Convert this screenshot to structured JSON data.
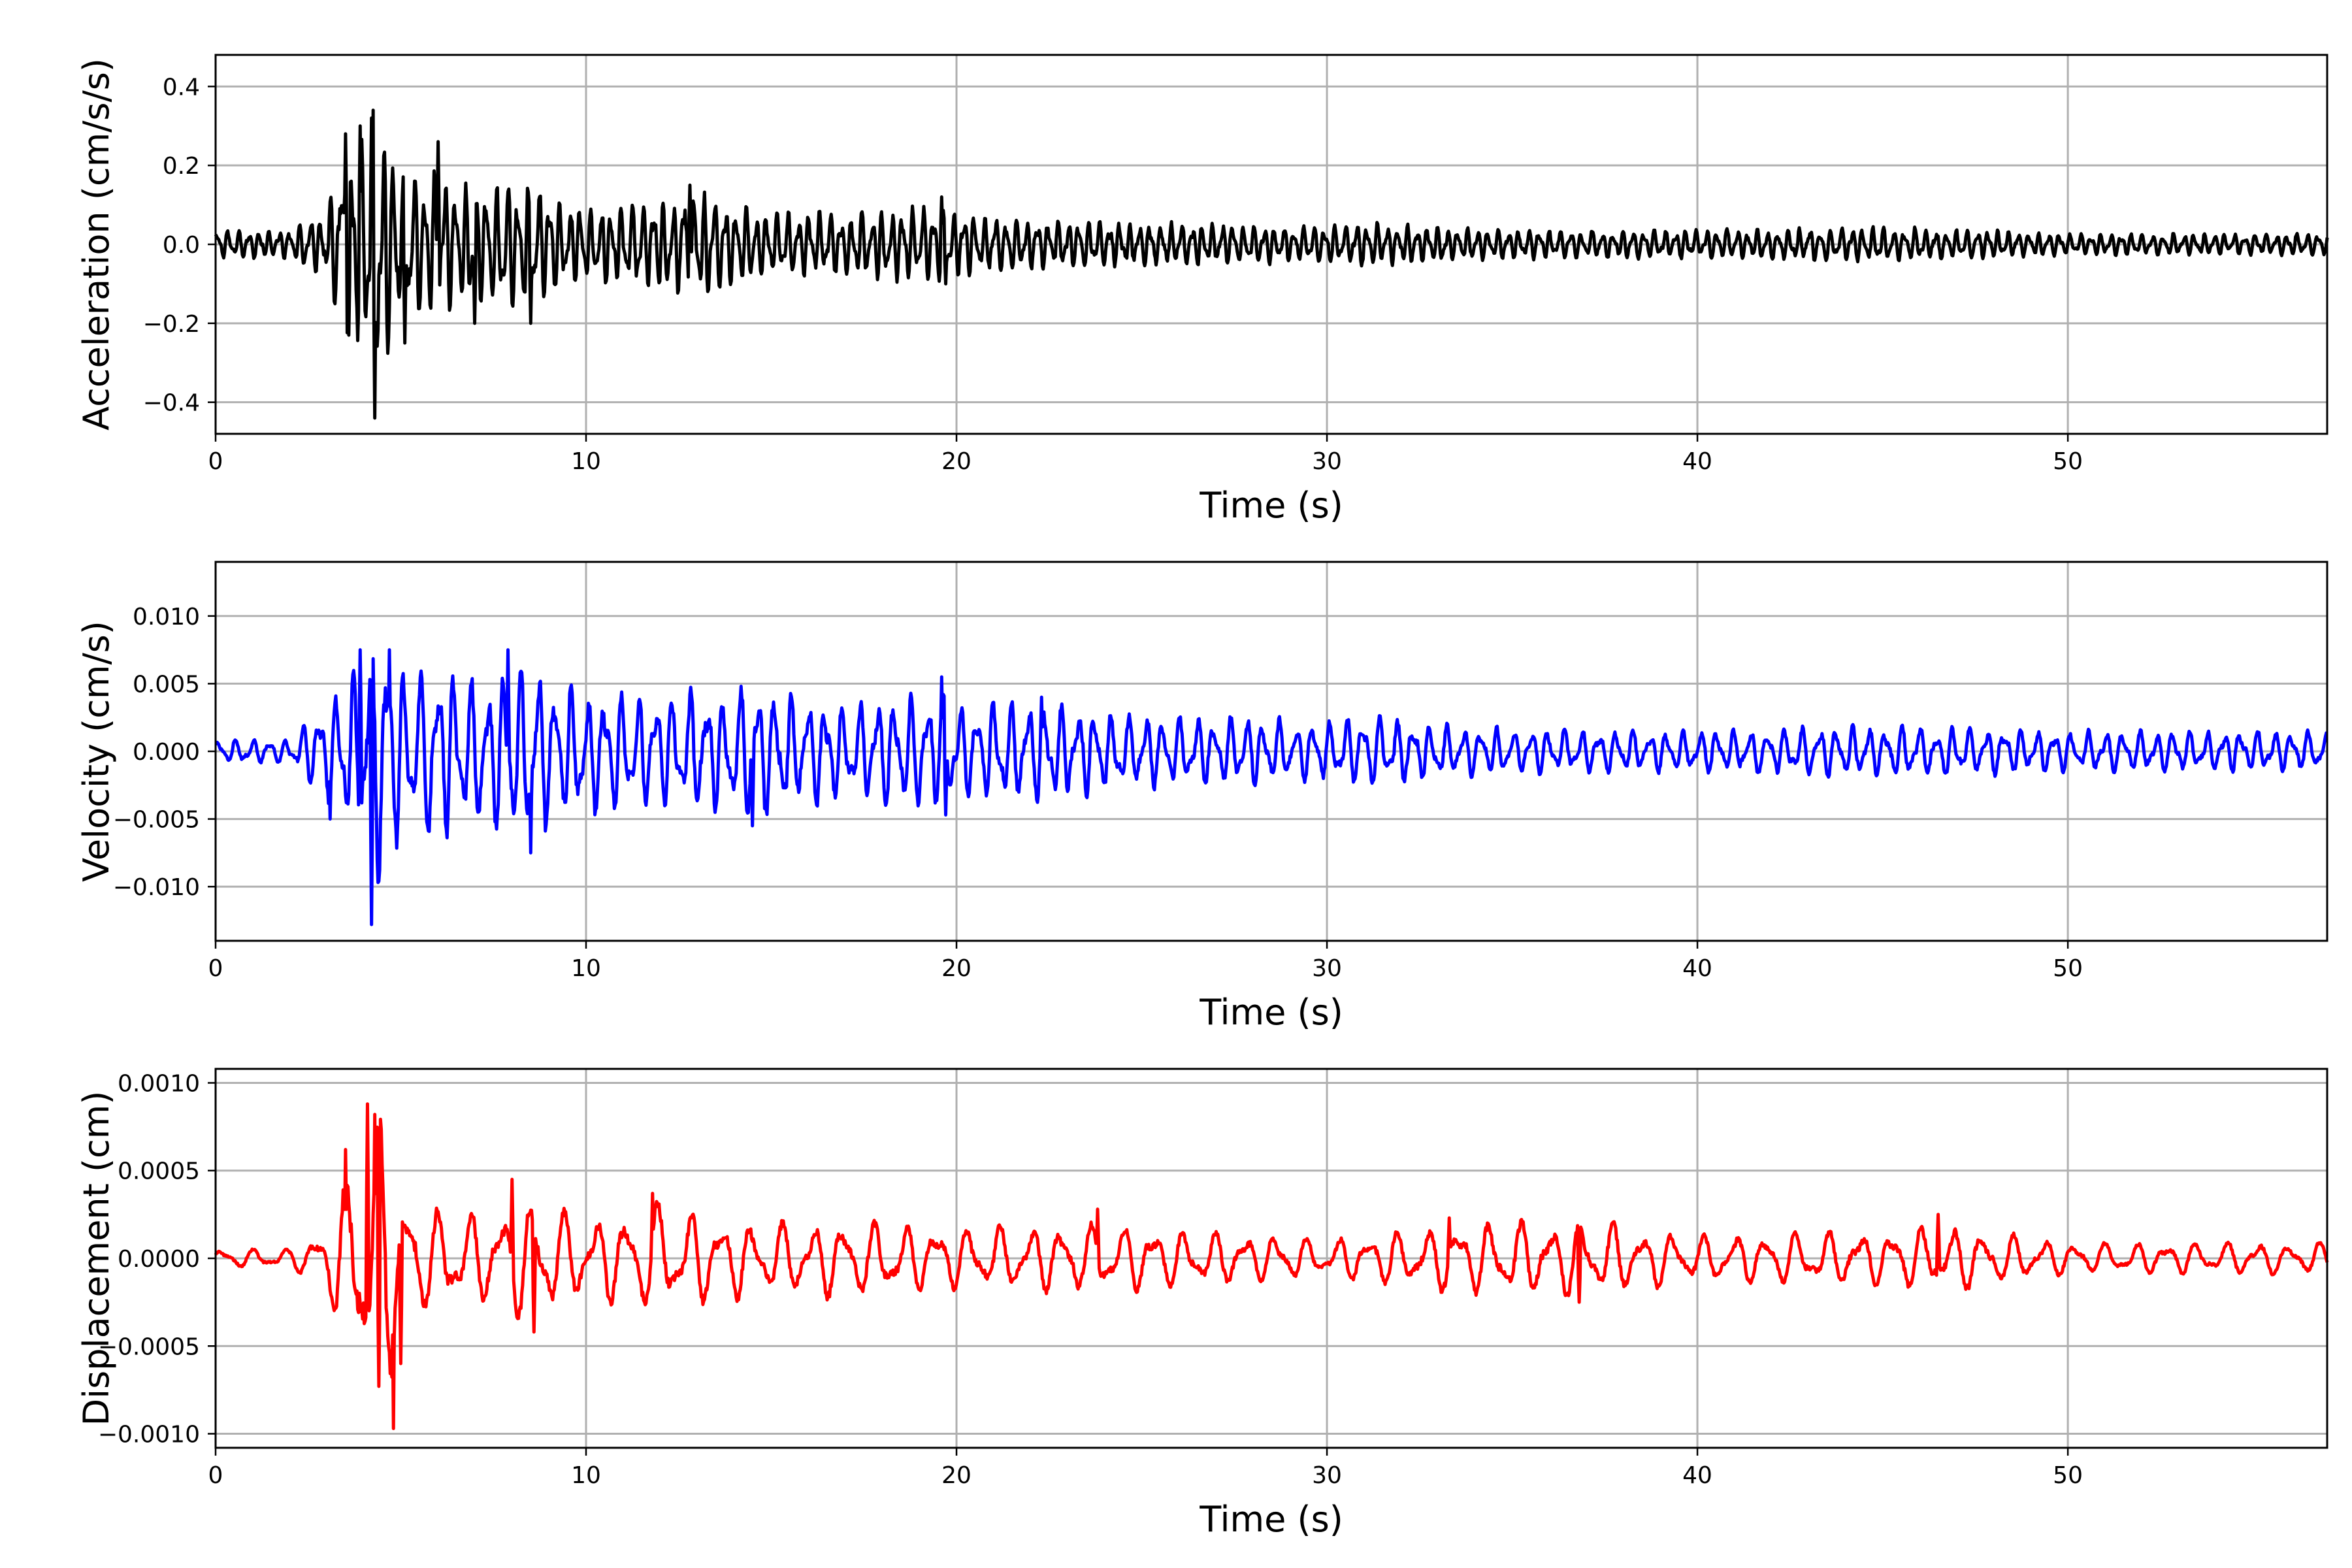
{
  "chart_data": [
    {
      "type": "line",
      "xlabel": "Time (s)",
      "ylabel": "Acceleration (cm/s/s)",
      "xlim": [
        0,
        57
      ],
      "ylim": [
        -0.48,
        0.48
      ],
      "xticks": [
        0,
        10,
        20,
        30,
        40,
        50
      ],
      "yticks": [
        -0.4,
        -0.2,
        0.0,
        0.2,
        0.4
      ],
      "ytick_labels": [
        "−0.4",
        "−0.2",
        "0.0",
        "0.2",
        "0.4"
      ],
      "grid": true,
      "series": [
        {
          "color": "#000000",
          "envelope": {
            "x": [
              0,
              2,
              3,
              3.5,
              4,
              4.2,
              5,
              6,
              7,
              8,
              8.5,
              10,
              12,
              13,
              15,
              17,
              19.5,
              20,
              22,
              25,
              30,
              31,
              35,
              40,
              45,
              50,
              57
            ],
            "y": [
              0.04,
              0.04,
              0.1,
              0.28,
              0.3,
              0.42,
              0.22,
              0.2,
              0.16,
              0.18,
              0.17,
              0.1,
              0.13,
              0.15,
              0.09,
              0.09,
              0.11,
              0.09,
              0.07,
              0.06,
              0.05,
              0.06,
              0.04,
              0.04,
              0.05,
              0.03,
              0.03
            ]
          },
          "peaks": [
            {
              "x": 3.5,
              "y": 0.28
            },
            {
              "x": 3.9,
              "y": 0.3
            },
            {
              "x": 4.2,
              "y": 0.32
            },
            {
              "x": 4.3,
              "y": -0.44
            },
            {
              "x": 3.6,
              "y": -0.23
            },
            {
              "x": 5.1,
              "y": -0.25
            },
            {
              "x": 6.0,
              "y": 0.26
            },
            {
              "x": 7.0,
              "y": -0.2
            },
            {
              "x": 8.5,
              "y": -0.2
            },
            {
              "x": 12.8,
              "y": 0.15
            },
            {
              "x": 19.6,
              "y": 0.12
            },
            {
              "x": 19.7,
              "y": -0.1
            }
          ]
        }
      ]
    },
    {
      "type": "line",
      "xlabel": "Time (s)",
      "ylabel": "Velocity (cm/s)",
      "xlim": [
        0,
        57
      ],
      "ylim": [
        -0.014,
        0.014
      ],
      "xticks": [
        0,
        10,
        20,
        30,
        40,
        50
      ],
      "yticks": [
        -0.01,
        -0.005,
        0.0,
        0.005,
        0.01
      ],
      "ytick_labels": [
        "−0.010",
        "−0.005",
        "0.000",
        "0.005",
        "0.010"
      ],
      "grid": true,
      "series": [
        {
          "color": "#0000ff",
          "envelope": {
            "x": [
              0,
              2,
              3,
              3.5,
              4,
              4.2,
              5,
              6,
              7,
              8,
              8.5,
              10,
              12,
              13,
              14.5,
              17,
              19.5,
              20,
              22.3,
              25,
              30,
              31,
              35,
              40,
              45,
              50,
              57
            ],
            "y": [
              0.001,
              0.001,
              0.004,
              0.006,
              0.008,
              0.0125,
              0.007,
              0.007,
              0.006,
              0.007,
              0.007,
              0.005,
              0.005,
              0.005,
              0.0055,
              0.004,
              0.005,
              0.004,
              0.004,
              0.003,
              0.0025,
              0.003,
              0.0018,
              0.0017,
              0.0022,
              0.0017,
              0.0017
            ]
          },
          "peaks": [
            {
              "x": 3.9,
              "y": 0.0075
            },
            {
              "x": 4.2,
              "y": -0.0128
            },
            {
              "x": 4.7,
              "y": 0.0075
            },
            {
              "x": 3.1,
              "y": -0.005
            },
            {
              "x": 7.9,
              "y": 0.0075
            },
            {
              "x": 8.5,
              "y": -0.0075
            },
            {
              "x": 14.5,
              "y": -0.0055
            },
            {
              "x": 19.6,
              "y": 0.0055
            },
            {
              "x": 19.7,
              "y": -0.0047
            },
            {
              "x": 22.3,
              "y": 0.004
            }
          ]
        }
      ]
    },
    {
      "type": "line",
      "xlabel": "Time (s)",
      "ylabel": "Displacement (cm)",
      "xlim": [
        0,
        57
      ],
      "ylim": [
        -0.00108,
        0.00108
      ],
      "xticks": [
        0,
        10,
        20,
        30,
        40,
        50
      ],
      "yticks": [
        -0.001,
        -0.0005,
        0.0,
        0.0005,
        0.001
      ],
      "ytick_labels": [
        "−0.0010",
        "−0.0005",
        "0.0000",
        "0.0005",
        "0.0010"
      ],
      "grid": true,
      "series": [
        {
          "color": "#ff0000",
          "envelope": {
            "x": [
              0,
              2,
              3,
              3.5,
              4,
              4.2,
              4.6,
              5,
              6,
              7,
              8,
              8.5,
              10,
              12,
              13,
              15,
              17,
              20,
              24,
              30,
              33.3,
              36.8,
              40,
              45,
              46.5,
              50,
              57
            ],
            "y": [
              6e-05,
              6e-05,
              0.0002,
              0.0006,
              0.0008,
              0.00088,
              0.00095,
              0.00045,
              0.0003,
              0.0003,
              0.00035,
              0.0004,
              0.00025,
              0.00035,
              0.0003,
              0.00022,
              0.00025,
              0.0002,
              0.00022,
              0.00012,
              0.00022,
              0.00025,
              0.00015,
              0.00018,
              0.00022,
              0.0001,
              0.0001
            ]
          },
          "peaks": [
            {
              "x": 3.5,
              "y": 0.00062
            },
            {
              "x": 4.1,
              "y": 0.00088
            },
            {
              "x": 4.3,
              "y": 0.00082
            },
            {
              "x": 4.4,
              "y": -0.00073
            },
            {
              "x": 4.8,
              "y": -0.00097
            },
            {
              "x": 5.0,
              "y": -0.0006
            },
            {
              "x": 8.0,
              "y": 0.00045
            },
            {
              "x": 8.6,
              "y": -0.00042
            },
            {
              "x": 11.8,
              "y": 0.00037
            },
            {
              "x": 23.8,
              "y": 0.00028
            },
            {
              "x": 33.3,
              "y": 0.00023
            },
            {
              "x": 36.8,
              "y": -0.00025
            },
            {
              "x": 46.5,
              "y": 0.00025
            }
          ]
        }
      ]
    }
  ]
}
